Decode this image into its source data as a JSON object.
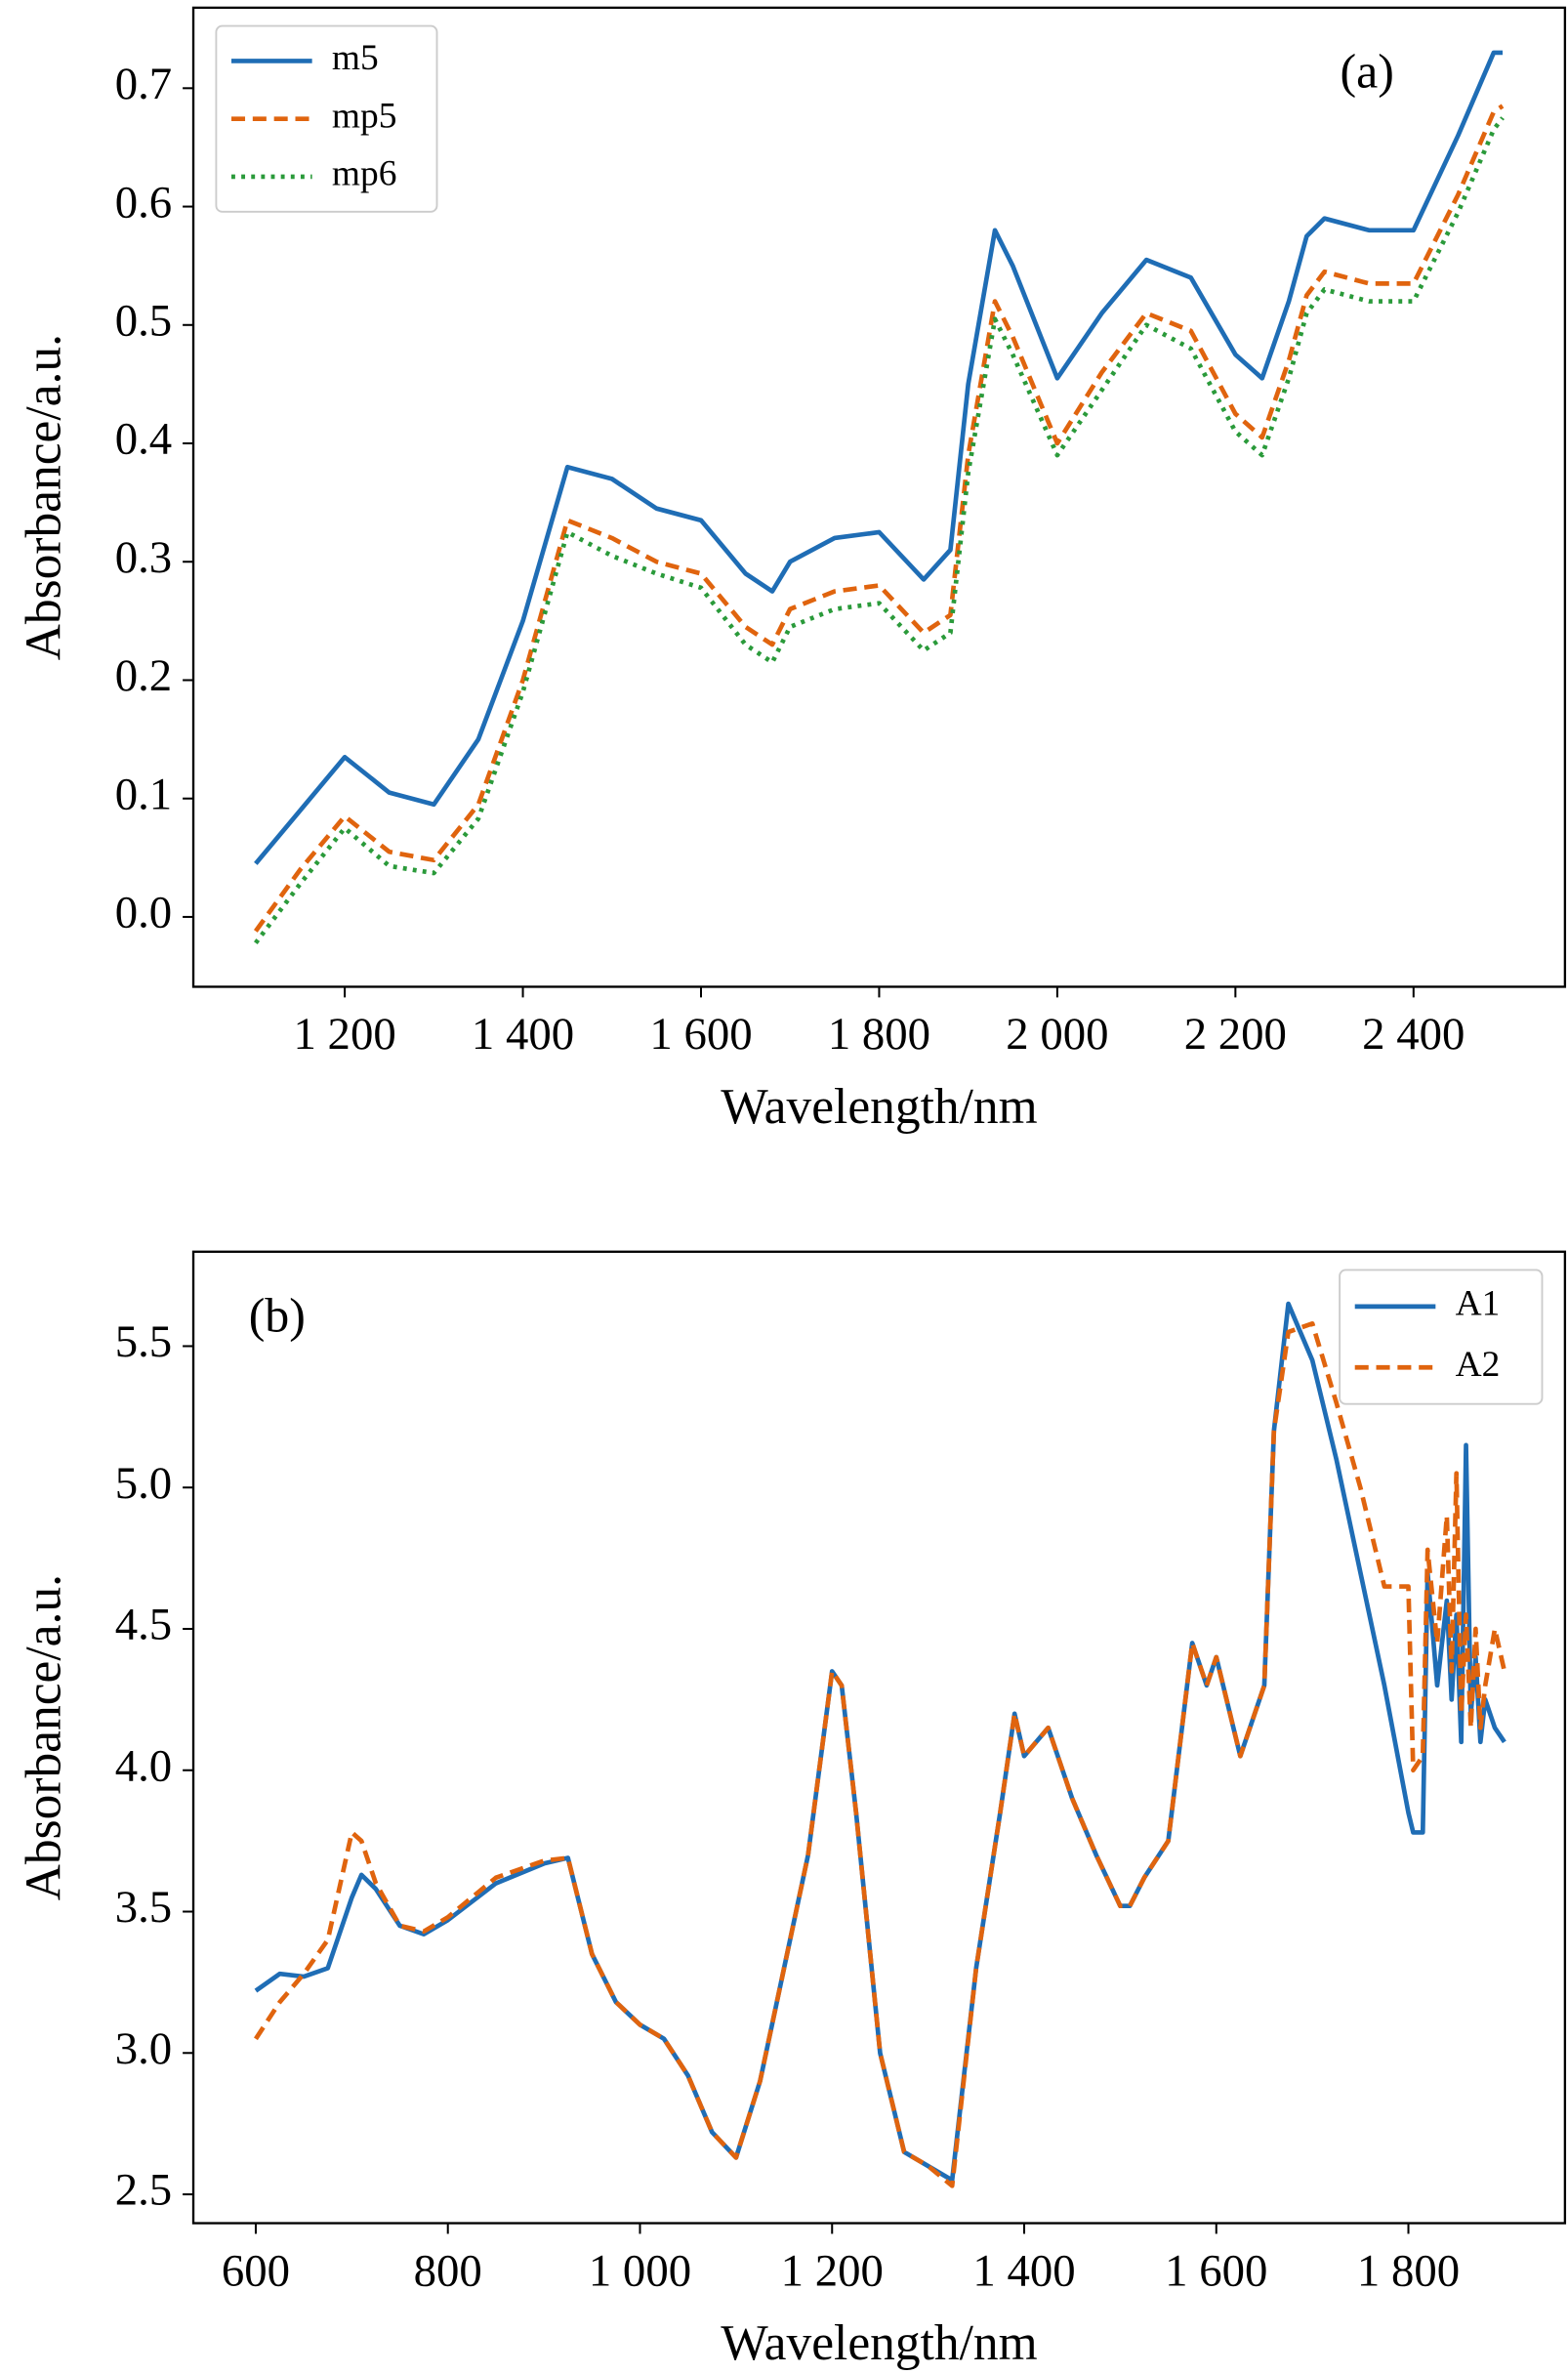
{
  "chart_data": [
    {
      "type": "line",
      "annotation": "(a)",
      "x_label": "Wavelength/nm",
      "y_label": "Absorbance/a.u.",
      "x": [
        1100,
        1150,
        1200,
        1250,
        1300,
        1350,
        1400,
        1450,
        1500,
        1550,
        1600,
        1650,
        1680,
        1700,
        1750,
        1800,
        1850,
        1880,
        1900,
        1930,
        1950,
        2000,
        2050,
        2100,
        2150,
        2200,
        2230,
        2260,
        2280,
        2300,
        2350,
        2400,
        2450,
        2490,
        2500
      ],
      "series": [
        {
          "name": "m5",
          "color": "#1f6db5",
          "linestyle": "solid",
          "values": [
            0.045,
            0.09,
            0.135,
            0.105,
            0.095,
            0.15,
            0.25,
            0.38,
            0.37,
            0.345,
            0.335,
            0.29,
            0.275,
            0.3,
            0.32,
            0.325,
            0.285,
            0.31,
            0.45,
            0.58,
            0.55,
            0.455,
            0.51,
            0.555,
            0.54,
            0.475,
            0.455,
            0.52,
            0.575,
            0.59,
            0.58,
            0.58,
            0.66,
            0.73,
            0.73
          ]
        },
        {
          "name": "mp5",
          "color": "#e0640e",
          "linestyle": "dashed",
          "values": [
            -0.012,
            0.04,
            0.085,
            0.055,
            0.048,
            0.095,
            0.2,
            0.335,
            0.32,
            0.3,
            0.29,
            0.245,
            0.23,
            0.26,
            0.275,
            0.28,
            0.24,
            0.255,
            0.39,
            0.52,
            0.49,
            0.4,
            0.46,
            0.51,
            0.495,
            0.425,
            0.405,
            0.47,
            0.525,
            0.545,
            0.535,
            0.535,
            0.61,
            0.68,
            0.685
          ]
        },
        {
          "name": "mp6",
          "color": "#2a9a3a",
          "linestyle": "dotted",
          "values": [
            -0.022,
            0.028,
            0.075,
            0.043,
            0.037,
            0.083,
            0.19,
            0.325,
            0.305,
            0.29,
            0.278,
            0.23,
            0.215,
            0.245,
            0.26,
            0.265,
            0.225,
            0.24,
            0.375,
            0.505,
            0.475,
            0.39,
            0.445,
            0.5,
            0.48,
            0.41,
            0.39,
            0.455,
            0.51,
            0.53,
            0.52,
            0.52,
            0.595,
            0.665,
            0.675
          ]
        }
      ],
      "xlim": [
        1030,
        2570
      ],
      "ylim": [
        -0.059,
        0.768
      ],
      "xticks": [
        {
          "value": 1200,
          "label": "1 200"
        },
        {
          "value": 1400,
          "label": "1 400"
        },
        {
          "value": 1600,
          "label": "1 600"
        },
        {
          "value": 1800,
          "label": "1 800"
        },
        {
          "value": 2000,
          "label": "2 000"
        },
        {
          "value": 2200,
          "label": "2 200"
        },
        {
          "value": 2400,
          "label": "2 400"
        }
      ],
      "yticks": [
        {
          "value": 0,
          "label": "0.0"
        },
        0.1,
        0.2,
        0.3,
        0.4,
        0.5,
        0.6,
        0.7
      ],
      "legend": "upper left",
      "grid": false
    },
    {
      "type": "line",
      "annotation": "(b)",
      "x_label": "Wavelength/nm",
      "y_label": "Absorbance/a.u.",
      "x": [
        600,
        625,
        650,
        675,
        700,
        710,
        725,
        750,
        775,
        800,
        850,
        900,
        925,
        950,
        975,
        1000,
        1025,
        1050,
        1075,
        1100,
        1125,
        1150,
        1175,
        1200,
        1210,
        1225,
        1250,
        1275,
        1300,
        1325,
        1350,
        1375,
        1390,
        1400,
        1425,
        1450,
        1475,
        1500,
        1510,
        1525,
        1550,
        1575,
        1590,
        1600,
        1625,
        1650,
        1660,
        1675,
        1700,
        1725,
        1750,
        1775,
        1800,
        1805,
        1815,
        1820,
        1830,
        1840,
        1845,
        1850,
        1855,
        1860,
        1865,
        1870,
        1875,
        1880,
        1890,
        1900
      ],
      "series": [
        {
          "name": "A1",
          "color": "#1f6db5",
          "linestyle": "solid",
          "values": [
            3.22,
            3.28,
            3.27,
            3.3,
            3.55,
            3.63,
            3.58,
            3.45,
            3.42,
            3.47,
            3.6,
            3.67,
            3.69,
            3.35,
            3.18,
            3.1,
            3.05,
            2.92,
            2.72,
            2.63,
            2.9,
            3.3,
            3.7,
            4.35,
            4.3,
            3.85,
            3.0,
            2.65,
            2.6,
            2.55,
            3.3,
            3.85,
            4.2,
            4.05,
            4.15,
            3.9,
            3.7,
            3.52,
            3.52,
            3.62,
            3.75,
            4.45,
            4.3,
            4.4,
            4.05,
            4.3,
            5.2,
            5.65,
            5.45,
            5.1,
            4.7,
            4.3,
            3.85,
            3.78,
            3.78,
            4.7,
            4.3,
            4.6,
            4.25,
            4.55,
            4.1,
            5.15,
            4.2,
            4.4,
            4.1,
            4.25,
            4.15,
            4.1
          ]
        },
        {
          "name": "A2",
          "color": "#e0640e",
          "linestyle": "dashed",
          "values": [
            3.05,
            3.18,
            3.28,
            3.4,
            3.78,
            3.75,
            3.6,
            3.45,
            3.43,
            3.48,
            3.62,
            3.68,
            3.69,
            3.35,
            3.18,
            3.1,
            3.05,
            2.92,
            2.72,
            2.63,
            2.9,
            3.3,
            3.7,
            4.35,
            4.3,
            3.85,
            3.0,
            2.65,
            2.6,
            2.53,
            3.3,
            3.85,
            4.2,
            4.05,
            4.15,
            3.9,
            3.7,
            3.52,
            3.52,
            3.62,
            3.75,
            4.45,
            4.3,
            4.4,
            4.05,
            4.3,
            5.2,
            5.55,
            5.58,
            5.3,
            5.0,
            4.65,
            4.65,
            4.0,
            4.05,
            4.78,
            4.45,
            4.9,
            4.35,
            5.05,
            4.2,
            4.55,
            4.15,
            4.5,
            4.15,
            4.3,
            4.5,
            4.35
          ]
        }
      ],
      "xlim": [
        535,
        1963
      ],
      "ylim": [
        2.398,
        5.834
      ],
      "xticks": [
        600,
        800,
        {
          "value": 1000,
          "label": "1 000"
        },
        {
          "value": 1200,
          "label": "1 200"
        },
        {
          "value": 1400,
          "label": "1 400"
        },
        {
          "value": 1600,
          "label": "1 600"
        },
        {
          "value": 1800,
          "label": "1 800"
        }
      ],
      "yticks": [
        2.5,
        {
          "value": 3,
          "label": "3.0"
        },
        3.5,
        {
          "value": 4,
          "label": "4.0"
        },
        4.5,
        {
          "value": 5,
          "label": "5.0"
        },
        5.5
      ],
      "legend": "upper right",
      "grid": false
    }
  ]
}
